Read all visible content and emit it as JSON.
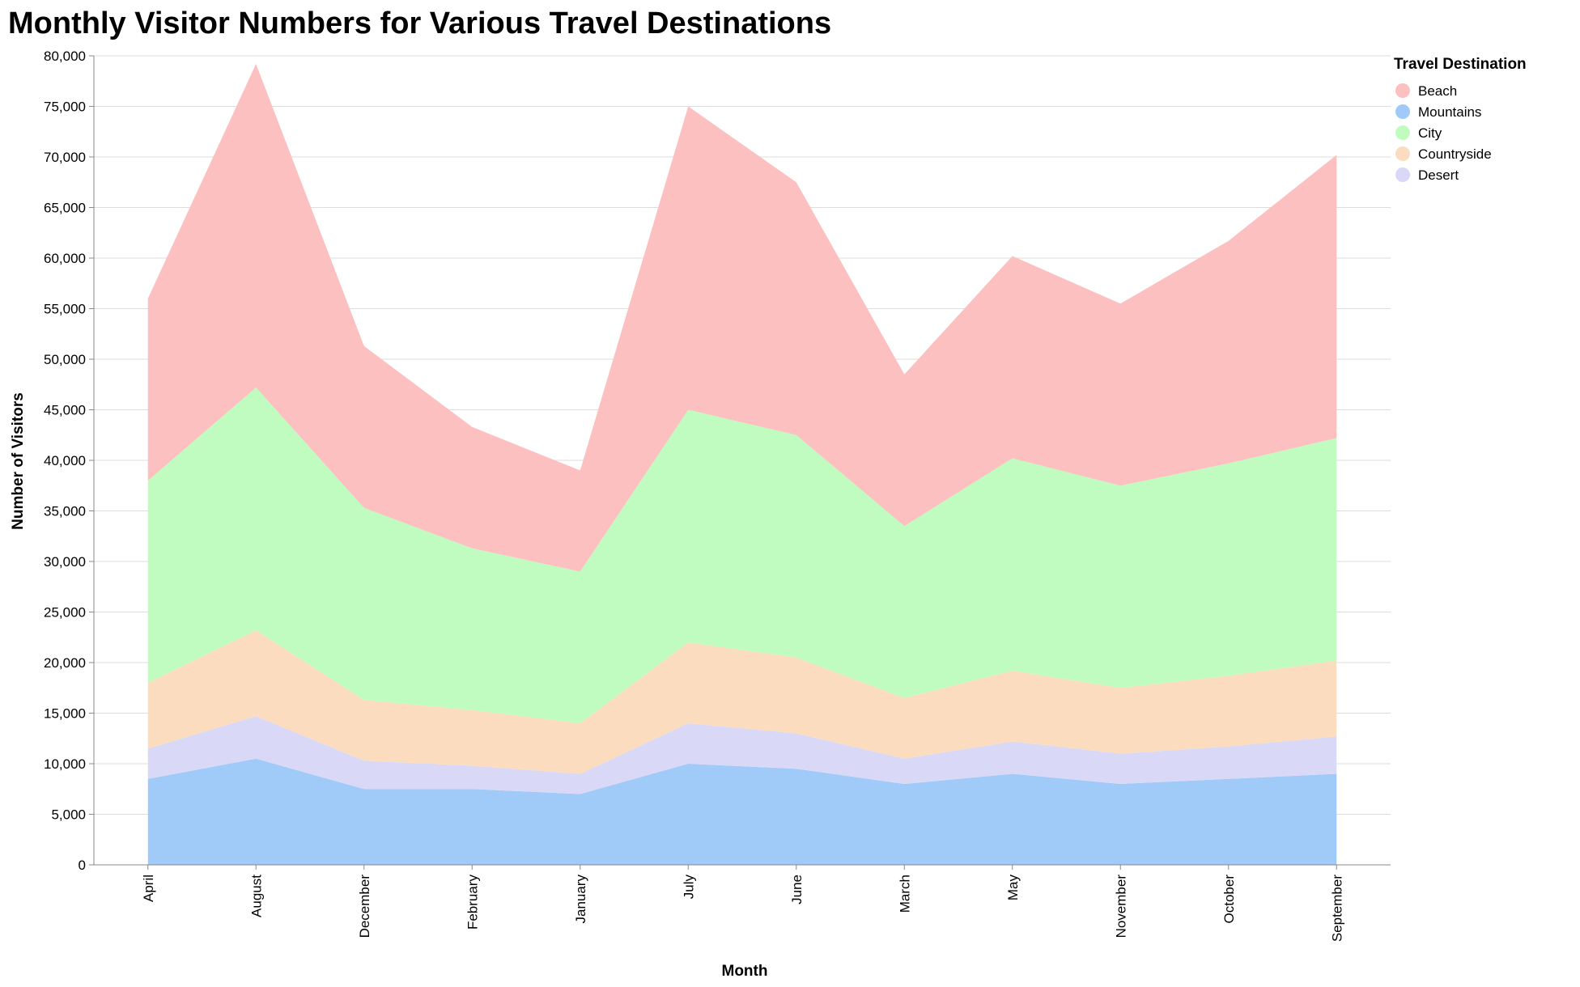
{
  "chart_data": {
    "type": "area",
    "stacked": true,
    "title": "Monthly Visitor Numbers for Various Travel Destinations",
    "xlabel": "Month",
    "ylabel": "Number of Visitors",
    "ylim": [
      0,
      80000
    ],
    "y_ticks": [
      0,
      5000,
      10000,
      15000,
      20000,
      25000,
      30000,
      35000,
      40000,
      45000,
      50000,
      55000,
      60000,
      65000,
      70000,
      75000,
      80000
    ],
    "grid": true,
    "legend_title": "Travel Destination",
    "legend_placement": "right",
    "categories": [
      "April",
      "August",
      "December",
      "February",
      "January",
      "July",
      "June",
      "March",
      "May",
      "November",
      "October",
      "September"
    ],
    "series": [
      {
        "name": "Mountains",
        "color": "#a0cbf8",
        "values": [
          8500,
          10500,
          7500,
          7500,
          7000,
          10000,
          9500,
          8000,
          9000,
          8000,
          8500,
          9000
        ]
      },
      {
        "name": "Desert",
        "color": "#d9d9f7",
        "values": [
          3000,
          4200,
          2800,
          2300,
          2000,
          4000,
          3500,
          2500,
          3200,
          3000,
          3200,
          3700
        ]
      },
      {
        "name": "Countryside",
        "color": "#fcdcbf",
        "values": [
          6500,
          8500,
          6000,
          5500,
          5000,
          8000,
          7500,
          6000,
          7000,
          6500,
          7000,
          7500
        ]
      },
      {
        "name": "City",
        "color": "#c0fcc0",
        "values": [
          20000,
          24000,
          19000,
          16000,
          15000,
          23000,
          22000,
          17000,
          21000,
          20000,
          21000,
          22000
        ]
      },
      {
        "name": "Beach",
        "color": "#fdc0c0",
        "values": [
          18000,
          32000,
          16000,
          12000,
          10000,
          30000,
          25000,
          15000,
          20000,
          18000,
          22000,
          28000
        ]
      }
    ],
    "legend_order": [
      "Beach",
      "Mountains",
      "City",
      "Countryside",
      "Desert"
    ]
  }
}
